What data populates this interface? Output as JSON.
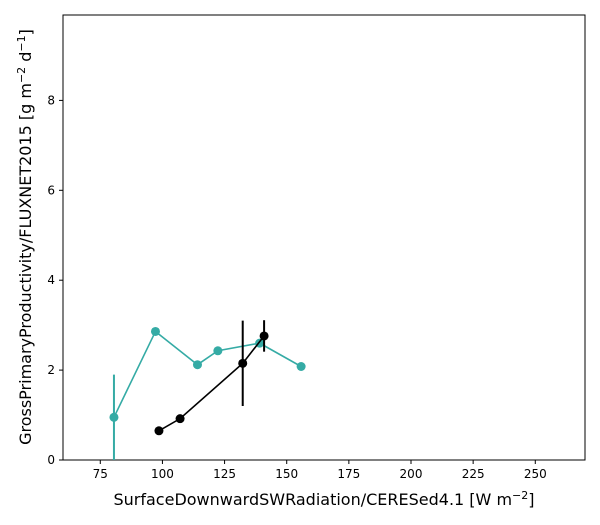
{
  "chart_data": {
    "type": "line",
    "xlabel": "SurfaceDownwardSWRadiation/CERESed4.1 [W m",
    "xlabel_unit_sup": "−2",
    "xlabel_close": "]",
    "ylabel": "GrossPrimaryProductivity/FLUXNET2015 [g m",
    "ylabel_unit_sup1": "−2",
    "ylabel_mid": " d",
    "ylabel_unit_sup2": "−1",
    "ylabel_close": "]",
    "xlim": [
      60,
      270
    ],
    "ylim": [
      0,
      9.9
    ],
    "x_ticks": [
      75,
      100,
      125,
      150,
      175,
      200,
      225,
      250
    ],
    "y_ticks": [
      0,
      2,
      4,
      6,
      8
    ],
    "x_tick_labels": [
      "75",
      "100",
      "125",
      "150",
      "175",
      "200",
      "225",
      "250"
    ],
    "y_tick_labels": [
      "0",
      "2",
      "4",
      "6",
      "8"
    ],
    "grid": false,
    "series": [
      {
        "color": "#35aba5",
        "points": [
          {
            "x": 80.5,
            "y": 0.95,
            "err": 0.95
          },
          {
            "x": 97.2,
            "y": 2.86
          },
          {
            "x": 114.1,
            "y": 2.12
          },
          {
            "x": 122.3,
            "y": 2.43
          },
          {
            "x": 139.1,
            "y": 2.6
          },
          {
            "x": 155.8,
            "y": 2.08
          }
        ]
      },
      {
        "color": "#000000",
        "points": [
          {
            "x": 98.6,
            "y": 0.65
          },
          {
            "x": 107.1,
            "y": 0.92
          },
          {
            "x": 132.3,
            "y": 2.15,
            "err": 0.95
          },
          {
            "x": 140.9,
            "y": 2.76,
            "err": 0.35
          }
        ]
      }
    ]
  }
}
